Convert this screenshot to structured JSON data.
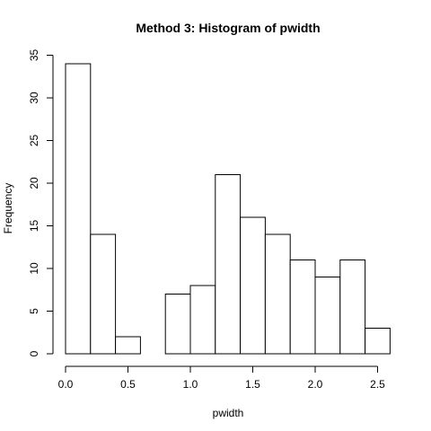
{
  "chart_data": {
    "type": "bar",
    "title": "Method 3: Histogram of pwidth",
    "xlabel": "pwidth",
    "ylabel": "Frequency",
    "bins": [
      [
        0.0,
        0.2
      ],
      [
        0.2,
        0.4
      ],
      [
        0.4,
        0.6
      ],
      [
        0.6,
        0.8
      ],
      [
        0.8,
        1.0
      ],
      [
        1.0,
        1.2
      ],
      [
        1.2,
        1.4
      ],
      [
        1.4,
        1.6
      ],
      [
        1.6,
        1.8
      ],
      [
        1.8,
        2.0
      ],
      [
        2.0,
        2.2
      ],
      [
        2.2,
        2.4
      ],
      [
        2.4,
        2.6
      ]
    ],
    "values": [
      34,
      14,
      2,
      0,
      7,
      8,
      21,
      16,
      14,
      11,
      9,
      11,
      3
    ],
    "xlim": [
      0.0,
      2.6
    ],
    "ylim": [
      0,
      35
    ],
    "xticks": [
      0.0,
      0.5,
      1.0,
      1.5,
      2.0,
      2.5
    ],
    "xtick_labels": [
      "0.0",
      "0.5",
      "1.0",
      "1.5",
      "2.0",
      "2.5"
    ],
    "yticks": [
      0,
      5,
      10,
      15,
      20,
      25,
      30,
      35
    ],
    "ytick_labels": [
      "0",
      "5",
      "10",
      "15",
      "20",
      "25",
      "30",
      "35"
    ],
    "grid": false
  }
}
